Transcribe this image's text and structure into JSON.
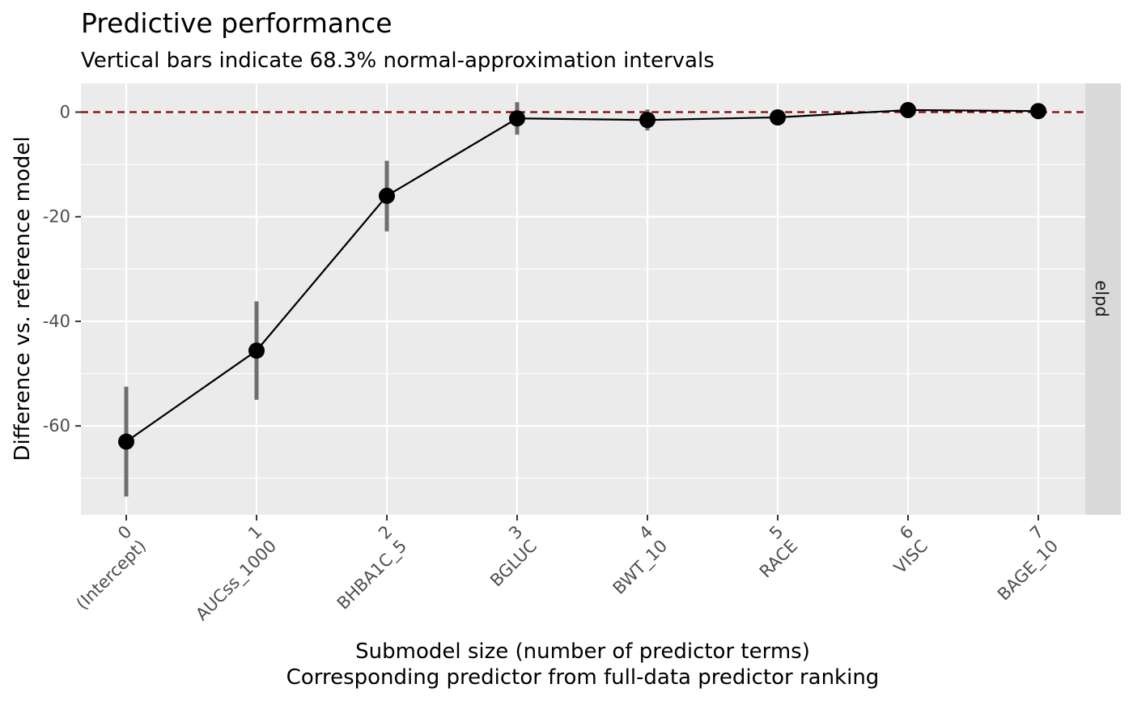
{
  "chart_data": {
    "type": "line",
    "title": "Predictive performance",
    "subtitle": "Vertical bars indicate 68.3% normal-approximation intervals",
    "xlabel_line1": "Submodel size (number of predictor terms)",
    "xlabel_line2": "Corresponding predictor from full-data predictor ranking",
    "ylabel": "Difference vs. reference model",
    "facet_label": "elpd",
    "ylim": [
      -77,
      5.5
    ],
    "y_ticks": [
      -60,
      -40,
      -20,
      0
    ],
    "y_tick_labels": [
      "-60",
      "-40",
      "-20",
      "0"
    ],
    "grid": true,
    "reference_line": {
      "y": 0,
      "style": "dashed",
      "color": "#8b0000"
    },
    "categories": [
      {
        "size": "0",
        "predictor": "(Intercept)"
      },
      {
        "size": "1",
        "predictor": "AUCss_1000"
      },
      {
        "size": "2",
        "predictor": "BHBA1C_5"
      },
      {
        "size": "3",
        "predictor": "BGLUC"
      },
      {
        "size": "4",
        "predictor": "BWT_10"
      },
      {
        "size": "5",
        "predictor": "RACE"
      },
      {
        "size": "6",
        "predictor": "VISC"
      },
      {
        "size": "7",
        "predictor": "BAGE_10"
      }
    ],
    "series": [
      {
        "values": [
          -63.0,
          -45.6,
          -16.0,
          -1.2,
          -1.5,
          -1.0,
          0.4,
          0.2
        ],
        "lower": [
          -73.5,
          -55.0,
          -22.8,
          -4.3,
          -3.5,
          -1.8,
          -0.2,
          -0.4
        ],
        "upper": [
          -52.5,
          -36.2,
          -9.3,
          1.9,
          0.5,
          -0.2,
          1.0,
          0.8
        ]
      }
    ],
    "colors": {
      "panel_bg": "#ebebeb",
      "grid": "#ffffff",
      "strip_bg": "#d9d9d9",
      "line": "#000000",
      "point": "#000000",
      "errorbar": "#6e6e6e",
      "refline": "#8b0000"
    }
  }
}
